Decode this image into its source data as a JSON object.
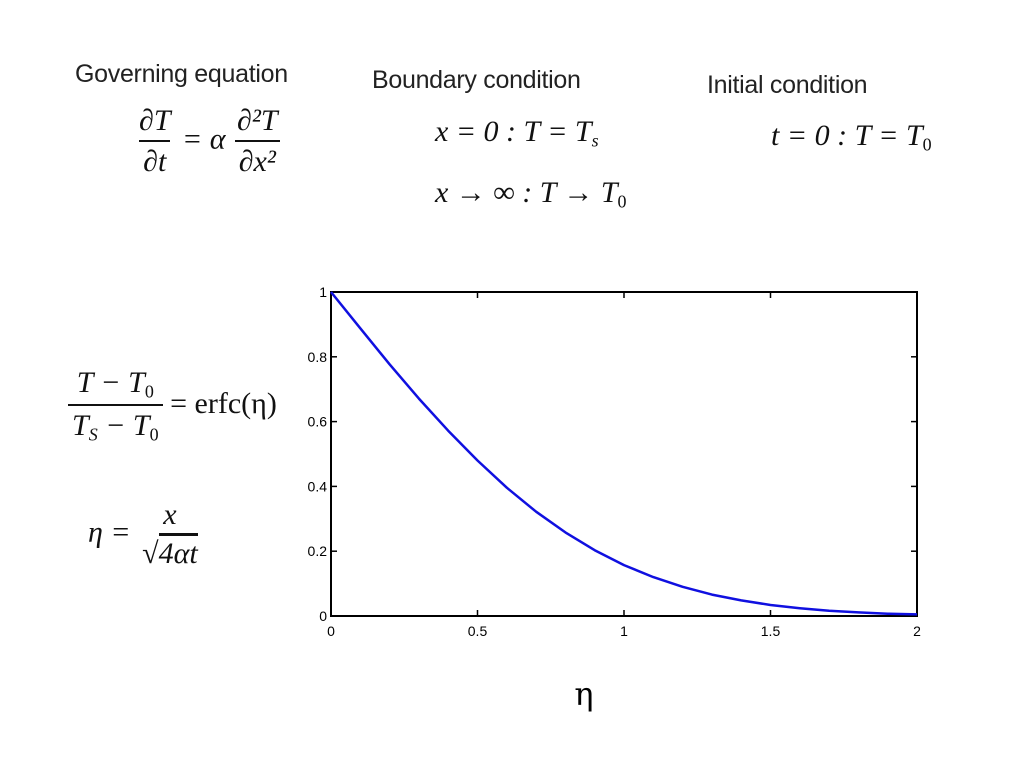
{
  "headings": {
    "governing": "Governing equation",
    "boundary": "Boundary condition",
    "initial": "Initial condition"
  },
  "equations": {
    "pde_lhs_num": "∂T",
    "pde_lhs_den": "∂t",
    "pde_eq": "= α",
    "pde_rhs_num": "∂²T",
    "pde_rhs_den": "∂x²",
    "bc1": "x = 0 : T = T",
    "bc1_sub": "s",
    "bc2": "x → ∞ : T → T",
    "bc2_sub": "0",
    "ic": "t = 0 : T = T",
    "ic_sub": "0",
    "sol_num": "T − T",
    "sol_num_sub": "0",
    "sol_den": "T",
    "sol_den_sub1": "S",
    "sol_den_mid": " − T",
    "sol_den_sub2": "0",
    "sol_rhs": "= erfc(η)",
    "eta_lhs": "η =",
    "eta_num": "x",
    "eta_den": "4αt"
  },
  "chart_data": {
    "type": "line",
    "title": "",
    "xlabel": "η",
    "ylabel": "",
    "xlim": [
      0,
      2
    ],
    "ylim": [
      0,
      1
    ],
    "xticks": [
      "0",
      "0.5",
      "1",
      "1.5",
      "2"
    ],
    "yticks": [
      "0",
      "0.2",
      "0.4",
      "0.6",
      "0.8",
      "1"
    ],
    "grid": false,
    "series": [
      {
        "color": "#1010e0",
        "x": [
          0,
          0.1,
          0.2,
          0.3,
          0.4,
          0.5,
          0.6,
          0.7,
          0.8,
          0.9,
          1.0,
          1.1,
          1.2,
          1.3,
          1.4,
          1.5,
          1.6,
          1.7,
          1.8,
          1.9,
          2.0
        ],
        "y": [
          1.0,
          0.888,
          0.777,
          0.671,
          0.572,
          0.48,
          0.396,
          0.322,
          0.258,
          0.203,
          0.157,
          0.12,
          0.09,
          0.066,
          0.048,
          0.034,
          0.024,
          0.016,
          0.011,
          0.007,
          0.005
        ]
      }
    ]
  }
}
